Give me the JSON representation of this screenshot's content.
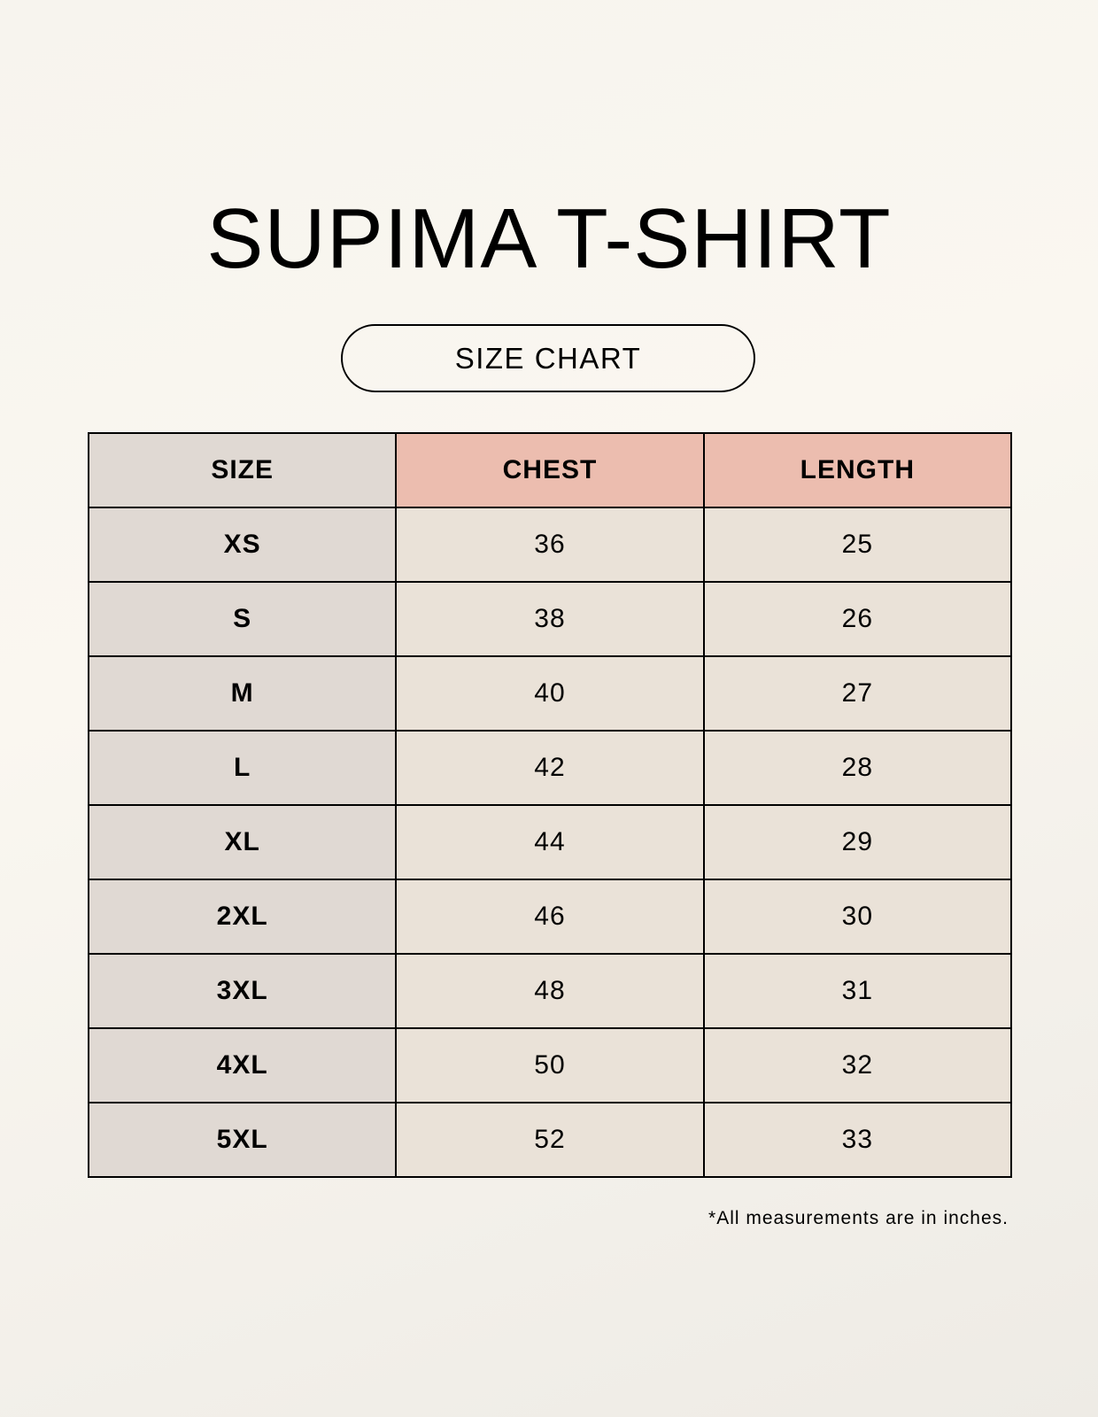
{
  "title": "SUPIMA T-SHIRT",
  "subtitle": "SIZE CHART",
  "colors": {
    "size_column": "#e0d9d3",
    "header_accent": "#ecbdaf",
    "cell": "#eae2d8",
    "background": "#f8f5ef"
  },
  "table": {
    "headers": [
      "SIZE",
      "CHEST",
      "LENGTH"
    ],
    "rows": [
      [
        "XS",
        "36",
        "25"
      ],
      [
        "S",
        "38",
        "26"
      ],
      [
        "M",
        "40",
        "27"
      ],
      [
        "L",
        "42",
        "28"
      ],
      [
        "XL",
        "44",
        "29"
      ],
      [
        "2XL",
        "46",
        "30"
      ],
      [
        "3XL",
        "48",
        "31"
      ],
      [
        "4XL",
        "50",
        "32"
      ],
      [
        "5XL",
        "52",
        "33"
      ]
    ]
  },
  "note": "*All measurements are in inches."
}
